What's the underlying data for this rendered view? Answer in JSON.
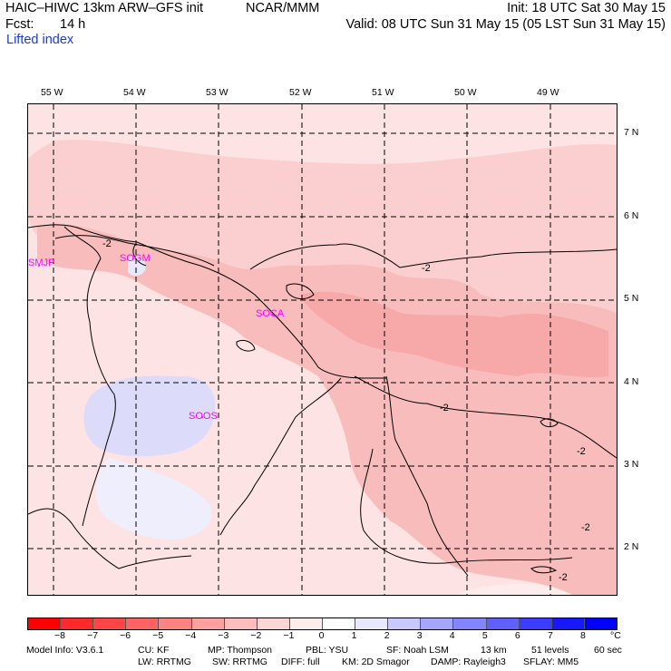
{
  "header": {
    "model_name": "HAIC–HIWC 13km ARW–GFS init",
    "org": "NCAR/MMM",
    "init": "Init: 18 UTC Sat 30 May 15",
    "fcst_label": "Fcst:",
    "fcst_value": "14 h",
    "valid": "Valid: 08 UTC Sun 31 May 15 (05 LST Sun 31 May 15)",
    "field": "Lifted index"
  },
  "map": {
    "lon_labels": [
      "55 W",
      "54 W",
      "53 W",
      "52 W",
      "51 W",
      "50 W",
      "49 W"
    ],
    "lat_labels": [
      "7 N",
      "6 N",
      "5 N",
      "4 N",
      "3 N",
      "2 N"
    ],
    "stations": [
      "SMJP",
      "SOGM",
      "SOCA",
      "SOOS"
    ],
    "contour_labels": [
      "-2",
      "-2",
      "-2",
      "-2",
      "-2",
      "-2"
    ]
  },
  "colorbar": {
    "ticks": [
      "−8",
      "−7",
      "−6",
      "−5",
      "−4",
      "−3",
      "−2",
      "−1",
      "0",
      "1",
      "2",
      "3",
      "4",
      "5",
      "6",
      "7",
      "8"
    ],
    "unit": "°C",
    "colors": [
      "#ff0000",
      "#ff2a2a",
      "#ff4646",
      "#ff6464",
      "#ff8282",
      "#ffa0a0",
      "#ffbcbc",
      "#ffd6d6",
      "#ffecec",
      "#ffffff",
      "#e8e8ff",
      "#c8c8ff",
      "#a6a6ff",
      "#8484ff",
      "#6060ff",
      "#3c3cff",
      "#1818ff",
      "#0000ff"
    ]
  },
  "footer": {
    "line1": [
      "Model Info: V3.6.1",
      "CU: KF",
      "MP: Thompson",
      "PBL: YSU",
      "SF: Noah LSM",
      "13 km",
      "51 levels",
      "60 sec"
    ],
    "line2": [
      "LW: RRTMG",
      "SW: RRTMG",
      "DIFF: full",
      "KM: 2D Smagor",
      "DAMP: Rayleigh3",
      "SFLAY: MM5"
    ]
  }
}
